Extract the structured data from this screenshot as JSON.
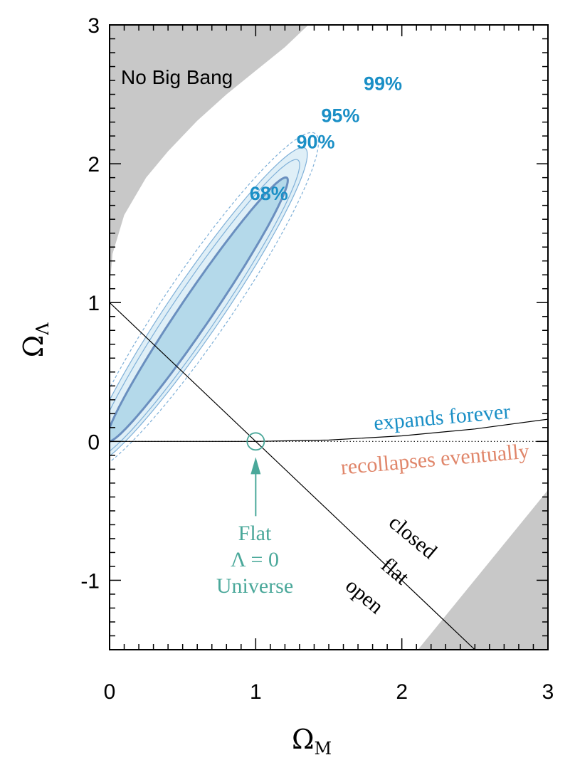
{
  "colors": {
    "no_big_bang_fill": "#c8c8c8",
    "contour_68_fill": "#b4d9ea",
    "contour_68_stroke": "#6a8fbf",
    "contour_outer_fill": "#dfeff7",
    "contour_outer_stroke": "#7fb0d8",
    "contour_label": "#1a8fc6",
    "expands_label": "#1a8fc6",
    "recollapses_label": "#e0866a",
    "flat_universe": "#4aa89a",
    "axis": "#000000"
  },
  "chart_data": {
    "type": "contour",
    "title": "",
    "xlabel": {
      "main": "Ω",
      "sub": "M"
    },
    "ylabel": {
      "main": "Ω",
      "sub": "Λ"
    },
    "xlim": [
      0,
      3
    ],
    "ylim": [
      -1.5,
      3
    ],
    "x_ticks": [
      0,
      1,
      2,
      3
    ],
    "x_tick_labels": [
      "0",
      "1",
      "2",
      "3"
    ],
    "y_ticks": [
      -1,
      0,
      1,
      2,
      3
    ],
    "y_tick_labels": [
      "-1",
      "0",
      "1",
      "2",
      "3"
    ],
    "minor_tick_step": 0.1,
    "confidence_contours": [
      {
        "level": "99%",
        "center": [
          0.62,
          1.0
        ],
        "semi_major": 1.45,
        "semi_minor": 0.23,
        "tilt_slope": 1.55,
        "style": "dashed",
        "label_at": [
          1.87,
          2.53
        ]
      },
      {
        "level": "95%",
        "center": [
          0.6,
          0.97
        ],
        "semi_major": 1.36,
        "semi_minor": 0.185,
        "tilt_slope": 1.55,
        "style": "solid-thin",
        "label_at": [
          1.58,
          2.3
        ]
      },
      {
        "level": "90%",
        "center": [
          0.6,
          0.96
        ],
        "semi_major": 1.27,
        "semi_minor": 0.155,
        "tilt_slope": 1.55,
        "style": "solid-thin",
        "label_at": [
          1.41,
          2.11
        ]
      },
      {
        "level": "68%",
        "center": [
          0.6,
          0.95
        ],
        "semi_major": 1.13,
        "semi_minor": 0.11,
        "tilt_slope": 1.55,
        "style": "solid-thick",
        "label_at": [
          1.09,
          1.74
        ]
      }
    ],
    "lines": [
      {
        "name": "flat",
        "points": [
          [
            0,
            1
          ],
          [
            2.5,
            -1.5
          ]
        ],
        "style": "solid"
      },
      {
        "name": "lambda-zero",
        "points": [
          [
            0,
            0
          ],
          [
            3,
            0
          ]
        ],
        "style": "dotted"
      },
      {
        "name": "expands-forever-boundary",
        "points": [
          [
            0,
            0
          ],
          [
            1,
            0
          ],
          [
            1.5,
            0.01
          ],
          [
            2,
            0.04
          ],
          [
            2.5,
            0.09
          ],
          [
            3,
            0.16
          ]
        ],
        "style": "solid"
      }
    ],
    "regions": [
      {
        "name": "No Big Bang",
        "x_points": [
          0,
          0.02,
          0.1,
          0.25,
          0.4,
          0.6,
          0.8,
          1.0,
          1.2,
          1.36
        ],
        "y_points": [
          1.1,
          1.35,
          1.63,
          1.9,
          2.09,
          2.31,
          2.5,
          2.67,
          2.84,
          3.0
        ]
      },
      {
        "name": "lower-right",
        "points": [
          [
            2.11,
            -1.5
          ],
          [
            3,
            -0.35
          ],
          [
            3,
            -1.5
          ]
        ]
      }
    ],
    "flat_universe_point": [
      1,
      0
    ],
    "annotations": {
      "no_big_bang": "No Big Bang",
      "expands_forever": "expands forever",
      "recollapses_eventually": "recollapses eventually",
      "closed": "closed",
      "flat": "flat",
      "open": "open",
      "flat_universe_lines": [
        "Flat",
        "Λ = 0",
        "Universe"
      ]
    }
  }
}
